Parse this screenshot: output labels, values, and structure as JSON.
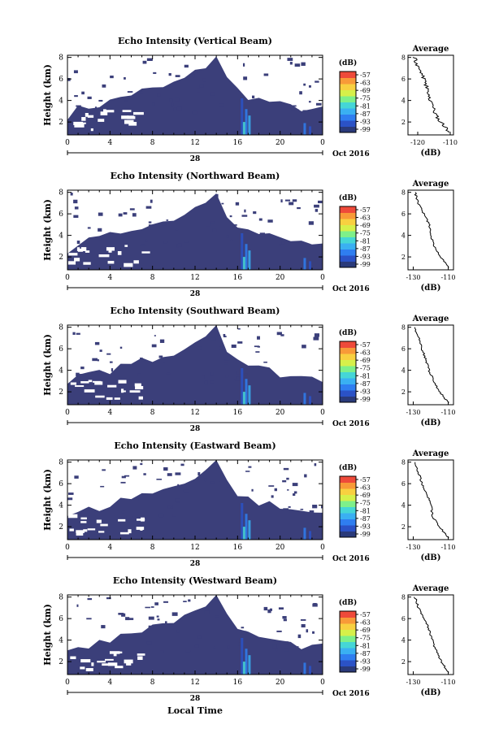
{
  "colors": {
    "echo_fill": "#3b3f7a",
    "background": "#ffffff",
    "colorbar": [
      "#2a3a7a",
      "#2b52c6",
      "#2f7ef0",
      "#3ab0f2",
      "#45d6d6",
      "#7ef08a",
      "#d6f04a",
      "#f8d040",
      "#f89a38",
      "#ee4a3a"
    ]
  },
  "figure": {
    "shared_xlabel": "Local Time",
    "date_label": "Oct 2016",
    "day_label": "28",
    "ylabel": "Height (km)",
    "colorbar_unit": "(dB)",
    "colorbar_ticks": [
      "-57",
      "-63",
      "-69",
      "-75",
      "-81",
      "-87",
      "-93",
      "-99"
    ],
    "avg_title": "Average",
    "avg_xlabel": "(dB)"
  },
  "chart_data": [
    {
      "type": "heatmap",
      "title": "Echo Intensity (Vertical Beam)",
      "x_ticks": [
        "0",
        "4",
        "8",
        "12",
        "16",
        "20",
        "0"
      ],
      "xlim": [
        0,
        24
      ],
      "y_ticks": [
        "2",
        "4",
        "6",
        "8"
      ],
      "ylim": [
        0.8,
        8.2
      ],
      "avg_profile": {
        "x_ticks": [
          "-120",
          "-110"
        ],
        "xlim": [
          -123,
          -109
        ],
        "ylim": [
          0.8,
          8.2
        ],
        "height": [
          1.0,
          2.0,
          3.0,
          4.0,
          5.0,
          6.0,
          7.0,
          8.0
        ],
        "value": [
          -110,
          -113,
          -115,
          -116,
          -117,
          -118,
          -120,
          -121
        ]
      }
    },
    {
      "type": "heatmap",
      "title": "Echo Intensity (Northward Beam)",
      "x_ticks": [
        "0",
        "4",
        "8",
        "12",
        "16",
        "20",
        "0"
      ],
      "xlim": [
        0,
        24
      ],
      "y_ticks": [
        "2",
        "4",
        "6",
        "8"
      ],
      "ylim": [
        0.8,
        8.2
      ],
      "avg_profile": {
        "x_ticks": [
          "-130",
          "-110"
        ],
        "xlim": [
          -133,
          -107
        ],
        "ylim": [
          0.8,
          8.2
        ],
        "height": [
          1.0,
          2.0,
          3.0,
          4.0,
          5.0,
          6.0,
          7.0,
          8.0
        ],
        "value": [
          -110,
          -114,
          -118,
          -120,
          -121,
          -124,
          -127,
          -129
        ]
      }
    },
    {
      "type": "heatmap",
      "title": "Echo Intensity (Southward Beam)",
      "x_ticks": [
        "0",
        "4",
        "8",
        "12",
        "16",
        "20",
        "0"
      ],
      "xlim": [
        0,
        24
      ],
      "y_ticks": [
        "2",
        "4",
        "6",
        "8"
      ],
      "ylim": [
        0.8,
        8.2
      ],
      "avg_profile": {
        "x_ticks": [
          "-130",
          "-110"
        ],
        "xlim": [
          -133,
          -107
        ],
        "ylim": [
          0.8,
          8.2
        ],
        "height": [
          1.0,
          2.0,
          3.0,
          4.0,
          5.0,
          6.0,
          7.0,
          8.0
        ],
        "value": [
          -110,
          -115,
          -118,
          -121,
          -123,
          -125,
          -127,
          -129
        ]
      }
    },
    {
      "type": "heatmap",
      "title": "Echo Intensity (Eastward Beam)",
      "x_ticks": [
        "0",
        "4",
        "8",
        "12",
        "16",
        "20",
        "0"
      ],
      "xlim": [
        0,
        24
      ],
      "y_ticks": [
        "2",
        "4",
        "6",
        "8"
      ],
      "ylim": [
        0.8,
        8.2
      ],
      "avg_profile": {
        "x_ticks": [
          "-130",
          "-110"
        ],
        "xlim": [
          -133,
          -107
        ],
        "ylim": [
          0.8,
          8.2
        ],
        "height": [
          1.0,
          2.0,
          3.0,
          4.0,
          5.0,
          6.0,
          7.0,
          8.0
        ],
        "value": [
          -110,
          -115,
          -119,
          -120,
          -122,
          -125,
          -127,
          -129
        ]
      }
    },
    {
      "type": "heatmap",
      "title": "Echo Intensity (Westward Beam)",
      "x_ticks": [
        "0",
        "4",
        "8",
        "12",
        "16",
        "20",
        "0"
      ],
      "xlim": [
        0,
        24
      ],
      "y_ticks": [
        "2",
        "4",
        "6",
        "8"
      ],
      "ylim": [
        0.8,
        8.2
      ],
      "avg_profile": {
        "x_ticks": [
          "-130",
          "-110"
        ],
        "xlim": [
          -133,
          -107
        ],
        "ylim": [
          0.8,
          8.2
        ],
        "height": [
          1.0,
          2.0,
          3.0,
          4.0,
          5.0,
          6.0,
          7.0,
          8.0
        ],
        "value": [
          -110,
          -114,
          -117,
          -119,
          -121,
          -124,
          -127,
          -129
        ]
      }
    }
  ]
}
